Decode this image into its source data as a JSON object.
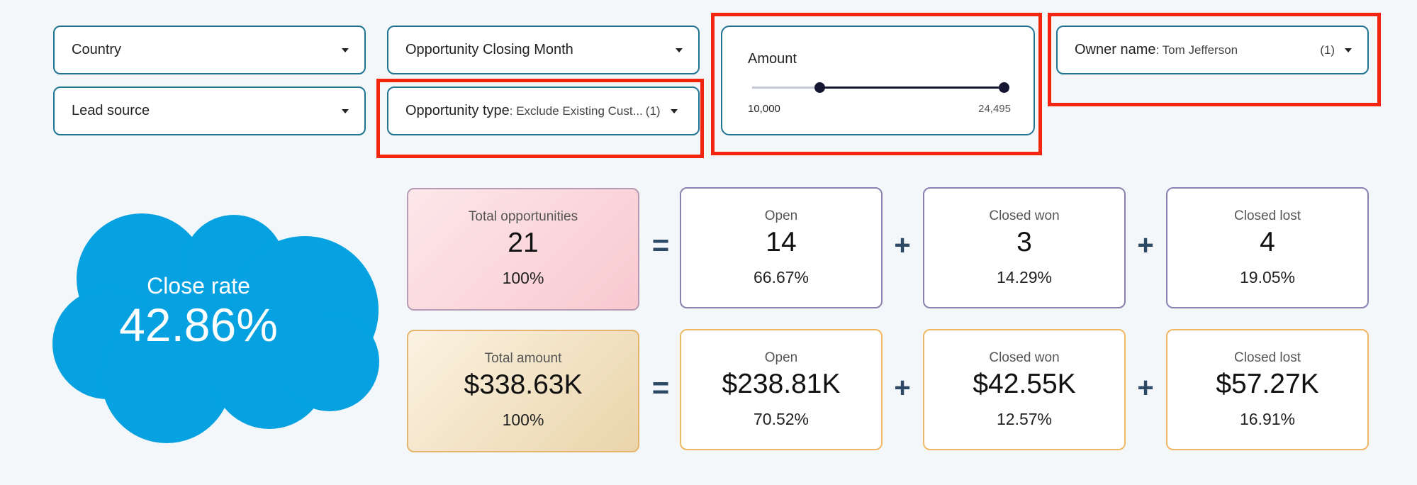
{
  "filters": {
    "country": {
      "label": "Country"
    },
    "closing_month": {
      "label": "Opportunity Closing Month"
    },
    "lead_source": {
      "label": "Lead source"
    },
    "opportunity_type": {
      "label": "Opportunity type",
      "value": ": Exclude Existing Cust...",
      "count": "(1)"
    },
    "owner_name": {
      "label": "Owner name",
      "value": ": Tom Jefferson",
      "count": "(1)"
    }
  },
  "amount_slider": {
    "label": "Amount",
    "min_label": "10,000",
    "max_label": "24,495",
    "selected_start_fraction": 0.27,
    "selected_end_fraction": 1.0
  },
  "close_rate": {
    "title": "Close rate",
    "value": "42.86%"
  },
  "operators": {
    "equals": "=",
    "plus": "+"
  },
  "opportunities": [
    {
      "title": "Total opportunities",
      "value": "21",
      "percent": "100%"
    },
    {
      "title": "Open",
      "value": "14",
      "percent": "66.67%"
    },
    {
      "title": "Closed won",
      "value": "3",
      "percent": "14.29%"
    },
    {
      "title": "Closed lost",
      "value": "4",
      "percent": "19.05%"
    }
  ],
  "amounts": [
    {
      "title": "Total amount",
      "value": "$338.63K",
      "percent": "100%"
    },
    {
      "title": "Open",
      "value": "$238.81K",
      "percent": "70.52%"
    },
    {
      "title": "Closed won",
      "value": "$42.55K",
      "percent": "12.57%"
    },
    {
      "title": "Closed lost",
      "value": "$57.27K",
      "percent": "16.91%"
    }
  ],
  "colors": {
    "accent_border": "#1e7491",
    "highlight": "#f2260f",
    "cloud": "#05a1e0",
    "operator": "#2c4a66"
  }
}
